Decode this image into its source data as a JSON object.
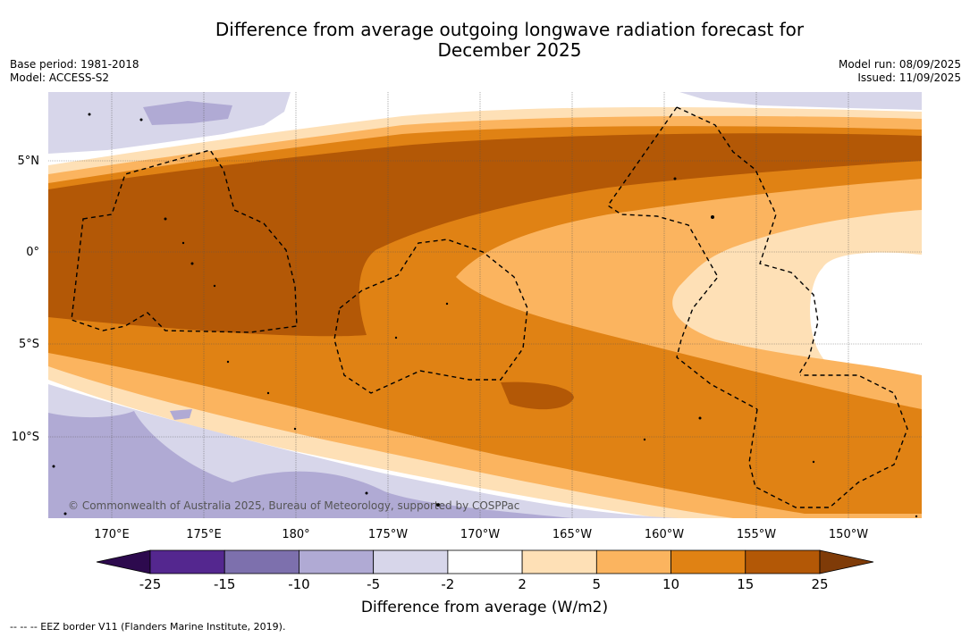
{
  "title_line1": "Difference from average outgoing longwave radiation forecast for",
  "title_line2": "December 2025",
  "meta_left": {
    "base_period": "Base period: 1981-2018",
    "model": "Model: ACCESS-S2"
  },
  "meta_right": {
    "model_run": "Model run: 08/09/2025",
    "issued": "Issued: 11/09/2025"
  },
  "map": {
    "lat_labels": [
      "5°N",
      "0°",
      "5°S",
      "10°S"
    ],
    "lon_labels": [
      "170°E",
      "175°E",
      "180°",
      "175°W",
      "170°W",
      "165°W",
      "160°W",
      "155°W",
      "150°W"
    ],
    "copyright": "© Commonwealth of Australia 2025, Bureau of Meteorology, supported by COSPPac"
  },
  "colorbar": {
    "ticks": [
      "-25",
      "-15",
      "-10",
      "-5",
      "-2",
      "2",
      "5",
      "10",
      "15",
      "25"
    ],
    "colors": [
      "#2d0a4e",
      "#54278f",
      "#7d70ad",
      "#b0aad4",
      "#d7d6ea",
      "#ffffff",
      "#fee0b6",
      "#fbb45f",
      "#e08214",
      "#b35806",
      "#7f3b08"
    ],
    "title": "Difference from average (W/m2)"
  },
  "footnote": "--  --  -- EEZ border V11 (Flanders Marine Institute, 2019)."
}
